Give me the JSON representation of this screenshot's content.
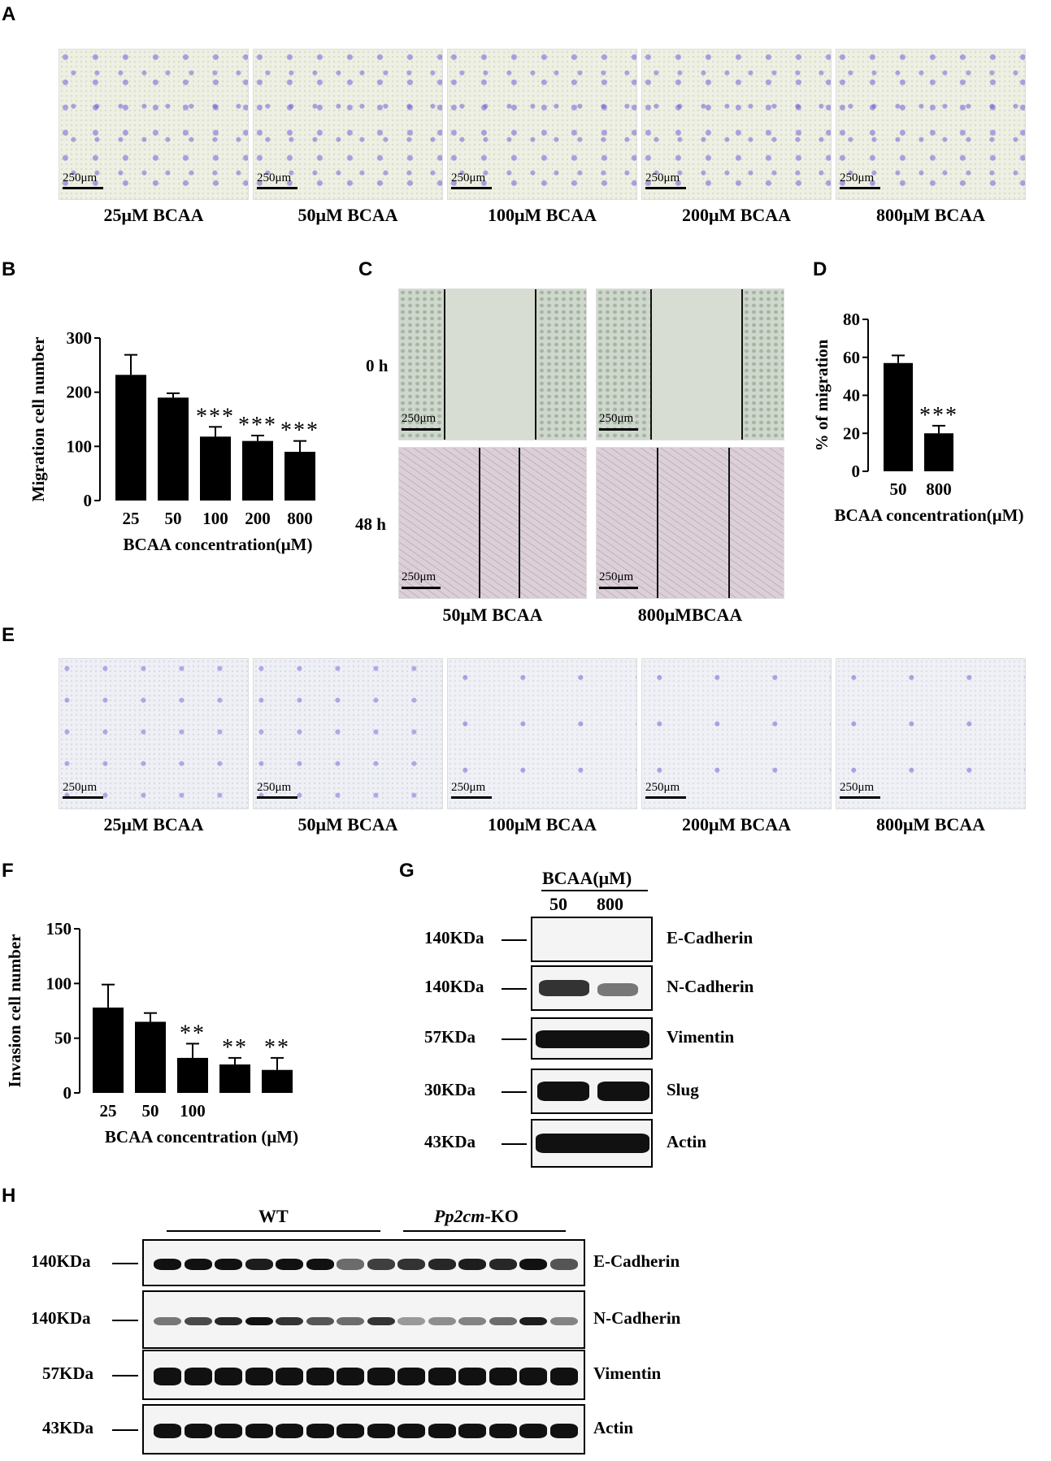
{
  "panels": {
    "A": "A",
    "B": "B",
    "C": "C",
    "D": "D",
    "E": "E",
    "F": "F",
    "G": "G",
    "H": "H"
  },
  "scale_bar": "250μm",
  "panel_a": {
    "captions": [
      "25μM BCAA",
      "50μM BCAA",
      "100μM BCAA",
      "200μM BCAA",
      "800μM BCAA"
    ]
  },
  "panel_c": {
    "rows": [
      "0 h",
      "48 h"
    ],
    "captions": [
      "50μM BCAA",
      "800μMBCAA"
    ]
  },
  "panel_e": {
    "captions": [
      "25μM BCAA",
      "50μM BCAA",
      "100μM BCAA",
      "200μM BCAA",
      "800μM BCAA"
    ]
  },
  "panel_g": {
    "header": "BCAA(μM)",
    "lanes": [
      "50",
      "800"
    ],
    "rows": [
      {
        "mw": "140KDa",
        "protein": "E-Cadherin"
      },
      {
        "mw": "140KDa",
        "protein": "N-Cadherin"
      },
      {
        "mw": "57KDa",
        "protein": "Vimentin"
      },
      {
        "mw": "30KDa",
        "protein": "Slug"
      },
      {
        "mw": "43KDa",
        "protein": "Actin"
      }
    ]
  },
  "panel_h": {
    "groups": [
      "WT",
      "Pp2cm",
      "-KO"
    ],
    "rows": [
      {
        "mw": "140KDa",
        "protein": "E-Cadherin"
      },
      {
        "mw": "140KDa",
        "protein": "N-Cadherin"
      },
      {
        "mw": "57KDa",
        "protein": "Vimentin"
      },
      {
        "mw": "43KDa",
        "protein": "Actin"
      }
    ]
  },
  "chart_data": [
    {
      "id": "B",
      "type": "bar",
      "categories": [
        "25",
        "50",
        "100",
        "200",
        "800"
      ],
      "values": [
        232,
        190,
        118,
        110,
        90
      ],
      "errors": [
        37,
        8,
        18,
        10,
        20
      ],
      "significance": [
        "",
        "",
        "***",
        "***",
        "***"
      ],
      "xlabel": "BCAA concentration(μM)",
      "ylabel": "Migration cell number",
      "ylim": [
        0,
        300
      ],
      "yticks": [
        0,
        100,
        200,
        300
      ]
    },
    {
      "id": "D",
      "type": "bar",
      "categories": [
        "50",
        "800"
      ],
      "values": [
        57,
        20
      ],
      "errors": [
        4,
        4
      ],
      "significance": [
        "",
        "***"
      ],
      "xlabel": "BCAA concentration(μM)",
      "ylabel": "% of migration",
      "ylim": [
        0,
        80
      ],
      "yticks": [
        0,
        20,
        40,
        60,
        80
      ]
    },
    {
      "id": "F",
      "type": "bar",
      "categories": [
        "25",
        "50",
        "100",
        "",
        ""
      ],
      "values": [
        78,
        65,
        32,
        26,
        21
      ],
      "errors": [
        21,
        8,
        13,
        6,
        11
      ],
      "significance": [
        "",
        "",
        "**",
        "**",
        "**"
      ],
      "xlabel": "BCAA concentration  (μM)",
      "ylabel": "Invasion cell number",
      "ylim": [
        0,
        150
      ],
      "yticks": [
        0,
        50,
        100,
        150
      ]
    }
  ]
}
